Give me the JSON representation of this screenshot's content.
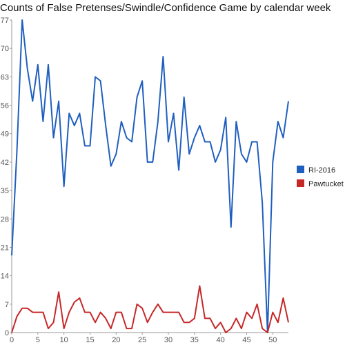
{
  "chart_data": {
    "type": "line",
    "title": "Counts of False Pretenses/Swindle/Confidence Game by calendar week",
    "xlabel": "",
    "ylabel": "",
    "xlim": [
      0,
      53
    ],
    "ylim": [
      0,
      77
    ],
    "x_ticks": [
      0,
      5,
      10,
      15,
      20,
      25,
      30,
      35,
      40,
      45,
      50
    ],
    "y_ticks": [
      0,
      7,
      14,
      21,
      28,
      35,
      42,
      49,
      56,
      63,
      70,
      77
    ],
    "grid": false,
    "legend_position": "right",
    "x": [
      0,
      1,
      2,
      3,
      4,
      5,
      6,
      7,
      8,
      9,
      10,
      11,
      12,
      13,
      14,
      15,
      16,
      17,
      18,
      19,
      20,
      21,
      22,
      23,
      24,
      25,
      26,
      27,
      28,
      29,
      30,
      31,
      32,
      33,
      34,
      35,
      36,
      37,
      38,
      39,
      40,
      41,
      42,
      43,
      44,
      45,
      46,
      47,
      48,
      49,
      50,
      51,
      52,
      53
    ],
    "series": [
      {
        "name": "RI-2016",
        "color": "#1f5fbf",
        "values": [
          19,
          45,
          77,
          65,
          57,
          66,
          52,
          66,
          48,
          57,
          36,
          54,
          51,
          54,
          46,
          46,
          63,
          62,
          51,
          41,
          44,
          52,
          48,
          47,
          58,
          62,
          42,
          42,
          52,
          68,
          47,
          54,
          40,
          58,
          44,
          48,
          51,
          47,
          47,
          42,
          45,
          53,
          26,
          52,
          44,
          42,
          47,
          47,
          32,
          0,
          42,
          52,
          48,
          57
        ]
      },
      {
        "name": "Pawtucket",
        "color": "#c62828",
        "values": [
          0,
          4,
          6,
          6,
          5,
          5,
          5,
          1,
          2.5,
          10,
          1,
          5,
          7.5,
          8.5,
          5,
          5,
          2.5,
          5,
          3.5,
          1,
          5,
          5,
          1,
          1,
          7,
          6,
          2.5,
          5,
          7,
          5,
          5,
          5,
          5,
          2.5,
          2.5,
          3.5,
          11.5,
          3.5,
          3.5,
          1,
          2.5,
          0,
          1,
          3.5,
          1,
          5,
          3.5,
          7,
          1,
          0,
          5,
          2.5,
          8.5,
          2.5
        ]
      }
    ]
  }
}
